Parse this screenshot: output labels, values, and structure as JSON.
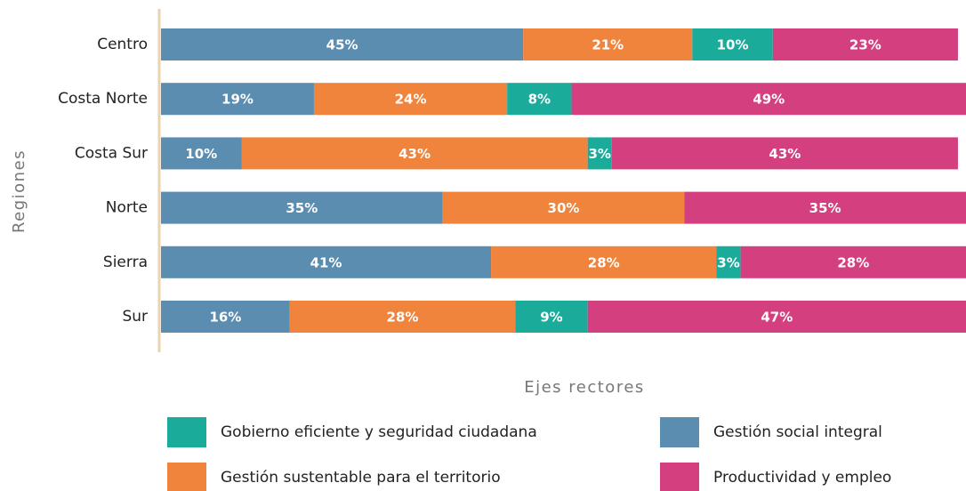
{
  "chart_data": {
    "type": "stacked_barh",
    "categories": [
      "Centro",
      "Costa Norte",
      "Costa Sur",
      "Norte",
      "Sierra",
      "Sur"
    ],
    "series": [
      {
        "name": "Gestión social integral",
        "color": "#5a8db0",
        "values": [
          45,
          19,
          10,
          35,
          41,
          16
        ],
        "value_labels": [
          "45%",
          "19%",
          "10%",
          "35%",
          "41%",
          "16%"
        ]
      },
      {
        "name": "Gestión sustentable para el territorio",
        "color": "#f0843d",
        "values": [
          21,
          24,
          43,
          30,
          28,
          28
        ],
        "value_labels": [
          "21%",
          "24%",
          "43%",
          "30%",
          "28%",
          "28%"
        ]
      },
      {
        "name": "Gobierno eficiente y seguridad ciudadana",
        "color": "#1aab9b",
        "values": [
          10,
          8,
          3,
          null,
          3,
          9
        ],
        "value_labels": [
          "10%",
          "8%",
          "3%",
          null,
          "3%",
          "9%"
        ]
      },
      {
        "name": "Productividad y empleo",
        "color": "#d4407f",
        "values": [
          23,
          49,
          43,
          35,
          28,
          47
        ],
        "value_labels": [
          "23%",
          "49%",
          "43%",
          "35%",
          "28%",
          "47%"
        ]
      }
    ],
    "xlabel": "Ejes rectores",
    "ylabel": "Regiones",
    "xlim": [
      0,
      100
    ]
  }
}
